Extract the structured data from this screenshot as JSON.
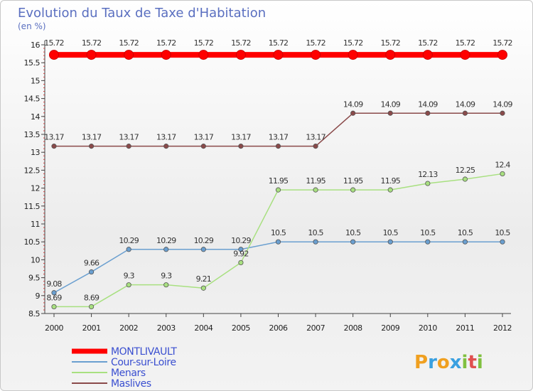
{
  "chart_data": {
    "type": "line",
    "title": "Evolution du Taux de Taxe d'Habitation",
    "subtitle": "(en %)",
    "x": [
      "2000",
      "2001",
      "2002",
      "2003",
      "2004",
      "2005",
      "2006",
      "2007",
      "2008",
      "2009",
      "2010",
      "2011",
      "2012"
    ],
    "yticks": [
      "8.5",
      "9",
      "9.5",
      "10",
      "10.5",
      "11",
      "11.5",
      "12",
      "12.5",
      "13",
      "13.5",
      "14",
      "14.5",
      "15",
      "15.5",
      "16"
    ],
    "ylim": [
      8.5,
      16
    ],
    "grid": false,
    "legend_position": "bottom-left",
    "series": [
      {
        "name": "MONTLIVAULT",
        "color": "#ff0000",
        "values": [
          15.72,
          15.72,
          15.72,
          15.72,
          15.72,
          15.72,
          15.72,
          15.72,
          15.72,
          15.72,
          15.72,
          15.72,
          15.72
        ],
        "labels": [
          "15.72",
          "15.72",
          "15.72",
          "15.72",
          "15.72",
          "15.72",
          "15.72",
          "15.72",
          "15.72",
          "15.72",
          "15.72",
          "15.72",
          "15.72"
        ]
      },
      {
        "name": "Cour-sur-Loire",
        "color": "#6a9fd0",
        "values": [
          9.08,
          9.66,
          10.29,
          10.29,
          10.29,
          10.29,
          10.5,
          10.5,
          10.5,
          10.5,
          10.5,
          10.5,
          10.5
        ],
        "labels": [
          "9.08",
          "9.66",
          "10.29",
          "10.29",
          "10.29",
          "10.29",
          "10.5",
          "10.5",
          "10.5",
          "10.5",
          "10.5",
          "10.5",
          "10.5"
        ]
      },
      {
        "name": "Menars",
        "color": "#a8e080",
        "values": [
          8.69,
          8.69,
          9.3,
          9.3,
          9.21,
          9.92,
          11.95,
          11.95,
          11.95,
          11.95,
          12.13,
          12.25,
          12.4
        ],
        "labels": [
          "8.69",
          "8.69",
          "9.3",
          "9.3",
          "9.21",
          "9.92",
          "11.95",
          "11.95",
          "11.95",
          "11.95",
          "12.13",
          "12.25",
          "12.4"
        ]
      },
      {
        "name": "Maslives",
        "color": "#8a4a4a",
        "values": [
          13.17,
          13.17,
          13.17,
          13.17,
          13.17,
          13.17,
          13.17,
          13.17,
          14.09,
          14.09,
          14.09,
          14.09,
          14.09
        ],
        "labels": [
          "13.17",
          "13.17",
          "13.17",
          "13.17",
          "13.17",
          "13.17",
          "13.17",
          "13.17",
          "14.09",
          "14.09",
          "14.09",
          "14.09",
          "14.09"
        ]
      }
    ]
  },
  "brand": {
    "letters": [
      "P",
      "r",
      "o",
      "x",
      "i",
      "t",
      "i"
    ],
    "colors": [
      "#f0a020",
      "#3aa0e0",
      "#f0a020",
      "#3aa0e0",
      "#80c040",
      "#e05050",
      "#80c040"
    ]
  }
}
